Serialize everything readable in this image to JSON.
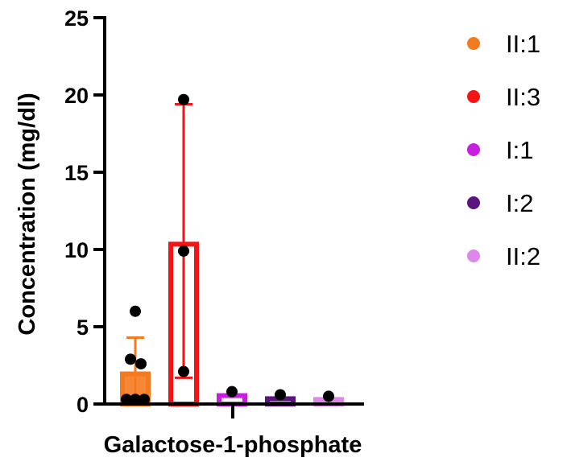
{
  "chart_data": {
    "type": "bar",
    "title": "",
    "xlabel": "Galactose-1-phosphate",
    "ylabel": "Concentration (mg/dl)",
    "ylim": [
      0,
      25
    ],
    "yticks": [
      0,
      5,
      10,
      15,
      20,
      25
    ],
    "ytick_labels": [
      "0",
      "5",
      "10",
      "15",
      "20",
      "25"
    ],
    "grid": false,
    "legend_position": "right",
    "series": [
      {
        "name": "II:1",
        "color": "#F47A20",
        "mean": 2.1,
        "error_bar": [
          0,
          4.3
        ],
        "points": [
          0.3,
          0.3,
          0.3,
          2.6,
          2.9,
          6.0
        ]
      },
      {
        "name": "II:3",
        "color": "#F41414",
        "mean": 10.5,
        "error_bar": [
          1.7,
          19.4
        ],
        "points": [
          2.1,
          9.9,
          19.7
        ]
      },
      {
        "name": "I:1",
        "color": "#C81EE0",
        "mean": 0.7,
        "error_bar": null,
        "points": [
          0.8
        ]
      },
      {
        "name": "I:2",
        "color": "#5A1480",
        "mean": 0.5,
        "error_bar": null,
        "points": [
          0.6
        ]
      },
      {
        "name": "II:2",
        "color": "#DD88E8",
        "mean": 0.45,
        "error_bar": null,
        "points": [
          0.5
        ]
      }
    ]
  }
}
